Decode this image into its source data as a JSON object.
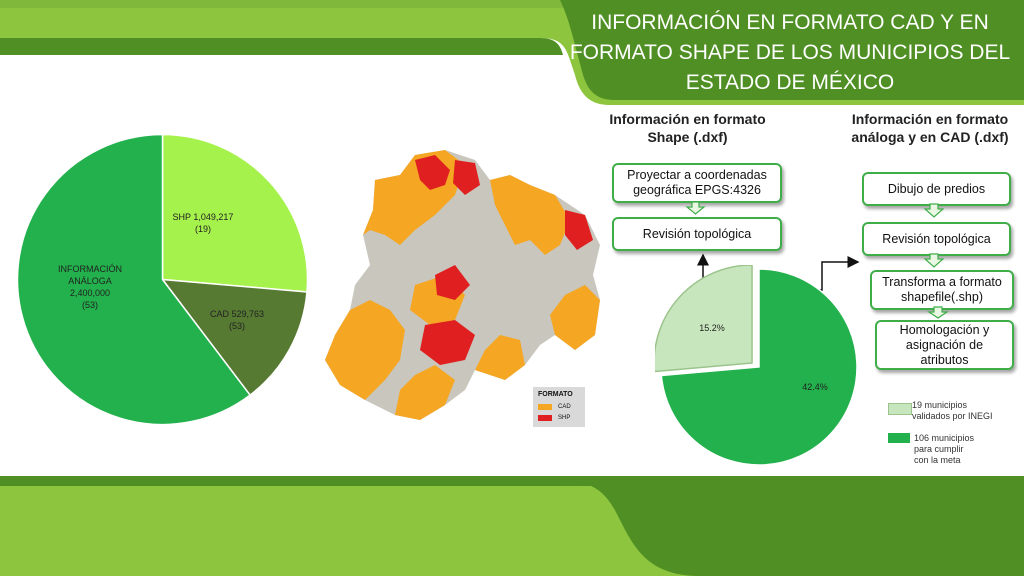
{
  "title": {
    "line1": "INFORMACIÓN EN FORMATO CAD Y EN",
    "line2": "FORMATO SHAPE DE LOS MUNICIPIOS DEL",
    "line3": "ESTADO DE MÉXICO"
  },
  "colors": {
    "green_light": "#8dc53e",
    "green_dark": "#4f8f24",
    "green_mid": "#22b14c",
    "lime": "#a6f24c",
    "olive": "#577a33",
    "orange": "#f5a623",
    "red": "#e02020"
  },
  "chart_data": [
    {
      "type": "pie",
      "slices": [
        {
          "label_lines": [
            "SHP 1,049,217",
            "(19)"
          ],
          "value": 1049217,
          "count": 19,
          "color": "#a6f24c"
        },
        {
          "label_lines": [
            "CAD 529,763",
            "(53)"
          ],
          "value": 529763,
          "count": 53,
          "color": "#577a33"
        },
        {
          "label_lines": [
            "INFORMACIÓN",
            "ANÁLOGA",
            "2,400,000",
            "(53)"
          ],
          "value": 2400000,
          "count": 53,
          "color": "#22b14c"
        }
      ]
    },
    {
      "type": "pie",
      "slices": [
        {
          "label": "15.2%",
          "value": 15.2,
          "color": "#c8e6bd"
        },
        {
          "label": "42.4%",
          "value": 42.4,
          "color": "#22b14c"
        }
      ],
      "legend": [
        {
          "lines": [
            "19 municipios",
            "validados por INEGI"
          ],
          "color": "#c8e6bd"
        },
        {
          "lines": [
            "106 municipios",
            "para cumplir",
            "con la meta"
          ],
          "color": "#22b14c"
        }
      ]
    }
  ],
  "map": {
    "legend_title": "FORMATO",
    "legend_items": [
      {
        "label": "CAD",
        "color": "#f5a623"
      },
      {
        "label": "SHP",
        "color": "#e02020"
      }
    ]
  },
  "shape_section": {
    "heading_line1": "Información en formato",
    "heading_line2": "Shape (.dxf)",
    "box1_line1": "Proyectar a coordenadas",
    "box1_line2": "geográfica EPGS:4326",
    "box2": "Revisión topológica"
  },
  "cad_section": {
    "heading_line1": "Información en formato",
    "heading_line2": "análoga y en CAD (.dxf)",
    "box1": "Dibujo de predios",
    "box2": "Revisión  topológica",
    "box3_line1": "Transforma a formato",
    "box3_line2": "shapefile(.shp)",
    "box4_line1": "Homologación y",
    "box4_line2": "asignación de",
    "box4_line3": "atributos"
  }
}
